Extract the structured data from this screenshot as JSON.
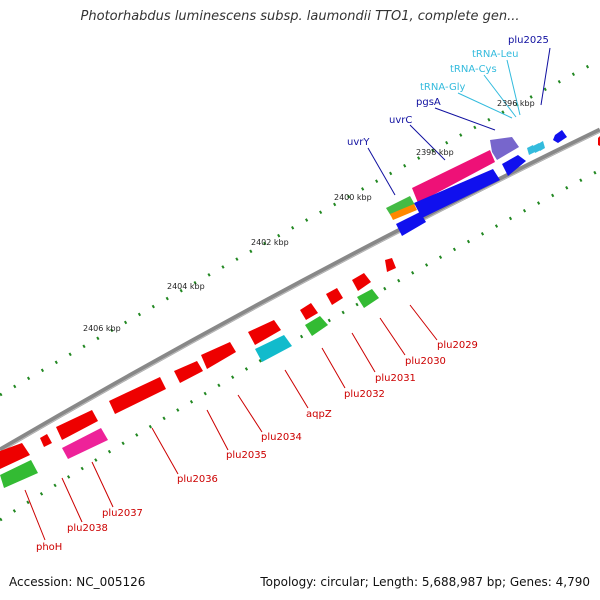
{
  "title": "Photorhabdus luminescens subsp. laumondii TTO1, complete gen...",
  "footer": {
    "accession": "Accession: NC_005126",
    "summary": "Topology: circular; Length: 5,688,987 bp; Genes: 4,790"
  },
  "colors": {
    "backbone": "#888888",
    "forward_label": "#1010a0",
    "trna_label": "#33bbdd",
    "reverse_label": "#cc0000",
    "tick_mark": "#226622"
  },
  "scale_labels": [
    "2396 kbp",
    "2398 kbp",
    "2400 kbp",
    "2402 kbp",
    "2404 kbp",
    "2406 kbp"
  ],
  "forward_labels": [
    "plu2025",
    "tRNA-Leu",
    "tRNA-Cys",
    "tRNA-Gly",
    "pgsA",
    "uvrC",
    "uvrY"
  ],
  "reverse_labels": [
    "plu2029",
    "plu2030",
    "plu2031",
    "plu2032",
    "aqpZ",
    "plu2034",
    "plu2035",
    "plu2036",
    "plu2037",
    "plu2038",
    "phoH"
  ]
}
